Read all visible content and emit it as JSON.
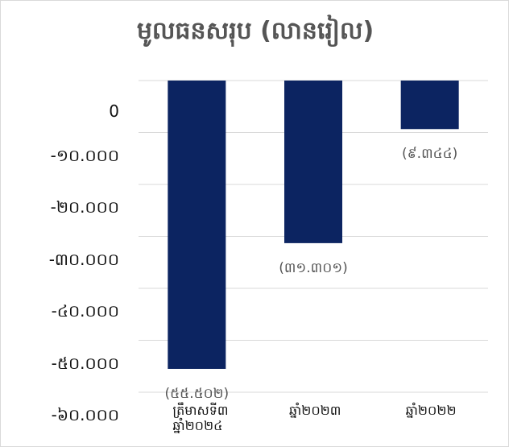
{
  "chart_data": {
    "type": "bar",
    "title": "មូលធនសរុប (លានរៀល)",
    "categories": [
      "ត្រឹមាសទី៣ ឆ្នាំ២០២៤",
      "ឆ្នាំ២០២៣",
      "ឆ្នាំ២០២២"
    ],
    "category_lines": [
      [
        "ត្រឹមាសទី៣",
        "ឆ្នាំ២០២៤"
      ],
      [
        "ឆ្នាំ២០២៣"
      ],
      [
        "ឆ្នាំ២០២២"
      ]
    ],
    "values": [
      -55502,
      -31301,
      -9344
    ],
    "data_labels": [
      "(៥៥.៥០២)",
      "(៣១.៣០១)",
      "(៩.៣៤៤)"
    ],
    "yticks": [
      "0",
      "-១០.០០០",
      "-២០.០០០",
      "-៣០.០០០",
      "-៤០.០០០",
      "-៥០.០០០",
      "-៦០.០០០"
    ],
    "ytick_values": [
      0,
      -10000,
      -20000,
      -30000,
      -40000,
      -50000,
      -60000
    ],
    "ylim": [
      -60000,
      0
    ],
    "xlabel": "",
    "ylabel": "",
    "bar_color": "#0c2461",
    "grid": true
  }
}
